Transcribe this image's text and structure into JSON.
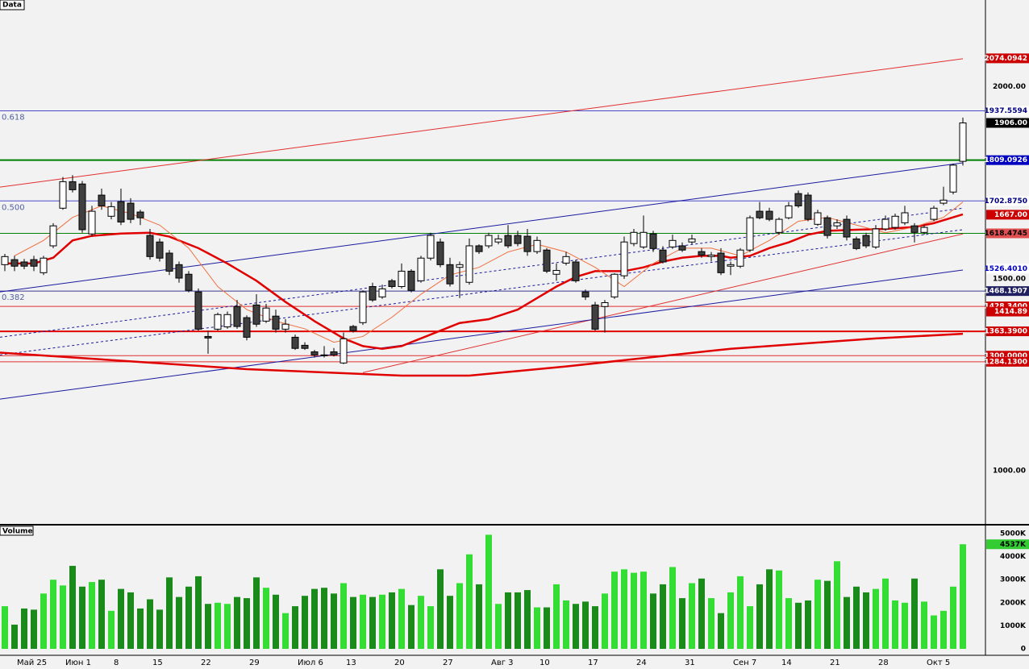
{
  "chart_data": {
    "type": "candlestick",
    "panel_title": "Data",
    "ylim": [
      862,
      2226
    ],
    "yticks": [
      {
        "value": 2000,
        "label": "2000.00"
      },
      {
        "value": 1500,
        "label": "1500.00"
      },
      {
        "value": 1000,
        "label": "1000.00"
      }
    ],
    "x_labels": [
      {
        "index": 1,
        "label": "Май 25"
      },
      {
        "index": 6,
        "label": "Июн 1"
      },
      {
        "index": 11,
        "label": "8"
      },
      {
        "index": 15,
        "label": "15"
      },
      {
        "index": 20,
        "label": "22"
      },
      {
        "index": 25,
        "label": "29"
      },
      {
        "index": 30,
        "label": "Июл 6"
      },
      {
        "index": 35,
        "label": "13"
      },
      {
        "index": 40,
        "label": "20"
      },
      {
        "index": 45,
        "label": "27"
      },
      {
        "index": 50,
        "label": "Авг 3"
      },
      {
        "index": 55,
        "label": "10"
      },
      {
        "index": 60,
        "label": "17"
      },
      {
        "index": 65,
        "label": "24"
      },
      {
        "index": 70,
        "label": "31"
      },
      {
        "index": 75,
        "label": "Сен 7"
      },
      {
        "index": 80,
        "label": "14"
      },
      {
        "index": 85,
        "label": "21"
      },
      {
        "index": 90,
        "label": "28"
      },
      {
        "index": 95,
        "label": "Окт 5"
      }
    ],
    "up_color": "#ffffff",
    "down_color": "#404040",
    "candles": [
      [
        1537,
        1565,
        1520,
        1558
      ],
      [
        1550,
        1560,
        1520,
        1533
      ],
      [
        1544,
        1552,
        1525,
        1533
      ],
      [
        1550,
        1560,
        1520,
        1533
      ],
      [
        1516,
        1560,
        1510,
        1554
      ],
      [
        1586,
        1645,
        1580,
        1638
      ],
      [
        1684,
        1765,
        1680,
        1753
      ],
      [
        1753,
        1770,
        1725,
        1732
      ],
      [
        1747,
        1755,
        1620,
        1628
      ],
      [
        1617,
        1690,
        1610,
        1676
      ],
      [
        1718,
        1735,
        1680,
        1690
      ],
      [
        1663,
        1700,
        1655,
        1688
      ],
      [
        1701,
        1735,
        1640,
        1648
      ],
      [
        1697,
        1710,
        1645,
        1655
      ],
      [
        1674,
        1680,
        1640,
        1659
      ],
      [
        1613,
        1630,
        1550,
        1558
      ],
      [
        1596,
        1605,
        1545,
        1554
      ],
      [
        1567,
        1575,
        1510,
        1520
      ],
      [
        1537,
        1545,
        1490,
        1502
      ],
      [
        1512,
        1520,
        1465,
        1470
      ],
      [
        1466,
        1475,
        1365,
        1369
      ],
      [
        1350,
        1365,
        1305,
        1346
      ],
      [
        1369,
        1412,
        1365,
        1407
      ],
      [
        1375,
        1415,
        1370,
        1407
      ],
      [
        1428,
        1445,
        1370,
        1376
      ],
      [
        1399,
        1405,
        1340,
        1348
      ],
      [
        1432,
        1460,
        1375,
        1382
      ],
      [
        1390,
        1435,
        1385,
        1424
      ],
      [
        1403,
        1420,
        1360,
        1369
      ],
      [
        1369,
        1395,
        1360,
        1382
      ],
      [
        1348,
        1355,
        1315,
        1319
      ],
      [
        1327,
        1335,
        1315,
        1319
      ],
      [
        1310,
        1315,
        1295,
        1302
      ],
      [
        1302,
        1325,
        1295,
        1300
      ],
      [
        1310,
        1320,
        1298,
        1302
      ],
      [
        1281,
        1360,
        1278,
        1344
      ],
      [
        1376,
        1380,
        1360,
        1365
      ],
      [
        1386,
        1470,
        1380,
        1466
      ],
      [
        1480,
        1490,
        1440,
        1445
      ],
      [
        1453,
        1485,
        1448,
        1474
      ],
      [
        1495,
        1500,
        1475,
        1480
      ],
      [
        1480,
        1540,
        1475,
        1520
      ],
      [
        1520,
        1525,
        1465,
        1470
      ],
      [
        1495,
        1560,
        1490,
        1554
      ],
      [
        1554,
        1620,
        1548,
        1613
      ],
      [
        1596,
        1605,
        1530,
        1537
      ],
      [
        1537,
        1555,
        1480,
        1487
      ],
      [
        1530,
        1545,
        1450,
        1537
      ],
      [
        1491,
        1605,
        1485,
        1586
      ],
      [
        1586,
        1590,
        1565,
        1571
      ],
      [
        1586,
        1620,
        1580,
        1613
      ],
      [
        1596,
        1615,
        1590,
        1604
      ],
      [
        1613,
        1640,
        1580,
        1586
      ],
      [
        1613,
        1625,
        1585,
        1592
      ],
      [
        1611,
        1630,
        1560,
        1571
      ],
      [
        1571,
        1610,
        1565,
        1600
      ],
      [
        1575,
        1580,
        1515,
        1520
      ],
      [
        1512,
        1540,
        1495,
        1522
      ],
      [
        1541,
        1570,
        1535,
        1558
      ],
      [
        1544,
        1550,
        1490,
        1495
      ],
      [
        1466,
        1472,
        1445,
        1453
      ],
      [
        1432,
        1440,
        1365,
        1369
      ],
      [
        1428,
        1445,
        1360,
        1438
      ],
      [
        1453,
        1515,
        1448,
        1512
      ],
      [
        1508,
        1610,
        1500,
        1596
      ],
      [
        1592,
        1630,
        1585,
        1621
      ],
      [
        1583,
        1665,
        1578,
        1621
      ],
      [
        1617,
        1625,
        1570,
        1579
      ],
      [
        1575,
        1585,
        1540,
        1544
      ],
      [
        1583,
        1615,
        1578,
        1600
      ],
      [
        1586,
        1595,
        1570,
        1575
      ],
      [
        1596,
        1615,
        1590,
        1604
      ],
      [
        1571,
        1580,
        1555,
        1562
      ],
      [
        1558,
        1570,
        1545,
        1562
      ],
      [
        1567,
        1580,
        1510,
        1516
      ],
      [
        1533,
        1545,
        1510,
        1537
      ],
      [
        1533,
        1580,
        1528,
        1575
      ],
      [
        1575,
        1665,
        1570,
        1659
      ],
      [
        1676,
        1700,
        1655,
        1659
      ],
      [
        1676,
        1685,
        1650,
        1655
      ],
      [
        1621,
        1660,
        1615,
        1655
      ],
      [
        1659,
        1700,
        1655,
        1690
      ],
      [
        1722,
        1730,
        1685,
        1690
      ],
      [
        1718,
        1725,
        1650,
        1655
      ],
      [
        1642,
        1680,
        1638,
        1672
      ],
      [
        1659,
        1665,
        1605,
        1613
      ],
      [
        1638,
        1655,
        1630,
        1646
      ],
      [
        1655,
        1665,
        1600,
        1609
      ],
      [
        1604,
        1610,
        1575,
        1579
      ],
      [
        1613,
        1620,
        1580,
        1586
      ],
      [
        1583,
        1640,
        1578,
        1630
      ],
      [
        1630,
        1665,
        1625,
        1655
      ],
      [
        1634,
        1670,
        1628,
        1663
      ],
      [
        1646,
        1690,
        1640,
        1672
      ],
      [
        1638,
        1645,
        1595,
        1621
      ],
      [
        1621,
        1640,
        1615,
        1634
      ],
      [
        1655,
        1690,
        1650,
        1684
      ],
      [
        1697,
        1740,
        1692,
        1705
      ],
      [
        1726,
        1800,
        1720,
        1796
      ],
      [
        1806,
        1920,
        1795,
        1906
      ]
    ],
    "levels": [
      {
        "value": 2074.0942,
        "label": "2074.0942",
        "bg": "#cc0000",
        "fg": "#ffffff"
      },
      {
        "value": 1937.5594,
        "label": "1937.5594",
        "line": "#4a4ac8",
        "width": 1,
        "bg": "#ffffff",
        "fg": "#000080",
        "fib": "0.618"
      },
      {
        "value": 1906,
        "label": "1906.00",
        "bg": "#000000",
        "fg": "#ffffff"
      },
      {
        "value": 1809.0926,
        "label": "1809.0926",
        "line": "#008000",
        "width": 2,
        "bg": "#0000c0",
        "fg": "#ffffff"
      },
      {
        "value": 1702.875,
        "label": "1702.8750",
        "line": "#4a4ac8",
        "width": 1,
        "bg": "#ffffff",
        "fg": "#000080",
        "fib": "0.500"
      },
      {
        "value": 1667,
        "label": "1667.00",
        "bg": "#cc0000",
        "fg": "#ffffff"
      },
      {
        "value": 1618.4745,
        "label": "1618.4745",
        "line": "#008000",
        "width": 1,
        "bg": "#e05050",
        "fg": "#000000"
      },
      {
        "value": 1526.401,
        "label": "1526.4010",
        "bg": "#ffffff",
        "fg": "#0000c0"
      },
      {
        "value": 1468.1907,
        "label": "1468.1907",
        "line": "#3a3a90",
        "width": 1,
        "bg": "#202060",
        "fg": "#ffffff",
        "fib": "0.382"
      },
      {
        "value": 1428.34,
        "label": "1428.3400",
        "line": "#e03030",
        "width": 1,
        "bg": "#cc0000",
        "fg": "#ffffff"
      },
      {
        "value": 1414.89,
        "label": "1414.89",
        "bg": "#cc0000",
        "fg": "#ffffff"
      },
      {
        "value": 1363.39,
        "label": "1363.3900",
        "line": "#e00000",
        "width": 2,
        "bg": "#cc0000",
        "fg": "#ffffff"
      },
      {
        "value": 1300,
        "label": "1300.0000",
        "line": "#e03030",
        "width": 1,
        "bg": "#cc0000",
        "fg": "#ffffff"
      },
      {
        "value": 1284.13,
        "label": "1284.1300",
        "line": "#e03030",
        "width": 1,
        "bg": "#cc0000",
        "fg": "#ffffff"
      }
    ],
    "trend_lines": [
      {
        "x": [
          -0.5,
          99
        ],
        "y": [
          1739,
          2073
        ],
        "color": "#e03030",
        "dash": false
      },
      {
        "x": [
          37,
          99
        ],
        "y": [
          1256,
          1617
        ],
        "color": "#e03030",
        "dash": false
      },
      {
        "x": [
          -0.5,
          99
        ],
        "y": [
          1466,
          1802
        ],
        "color": "#1a1aa0",
        "dash": false
      },
      {
        "x": [
          -0.5,
          99
        ],
        "y": [
          1187,
          1523
        ],
        "color": "#1a1aa0",
        "dash": false
      },
      {
        "x": [
          -0.5,
          99
        ],
        "y": [
          1348,
          1684
        ],
        "color": "#1a1aa0",
        "dash": true
      },
      {
        "x": [
          -0.5,
          99
        ],
        "y": [
          1302,
          1628
        ],
        "color": "#1a1aa0",
        "dash": true
      }
    ],
    "moving_averages": [
      {
        "color": "#e00000",
        "width": 2.5,
        "x": [
          -0.5,
          25,
          41,
          48,
          58,
          75,
          90,
          99
        ],
        "y": [
          1308,
          1265,
          1248,
          1248,
          1272,
          1318,
          1345,
          1357
        ]
      },
      {
        "color": "#e00000",
        "width": 2.5,
        "x": [
          0,
          3,
          5,
          7,
          9,
          12,
          15,
          17,
          20,
          23,
          26,
          29,
          32,
          35,
          37,
          39,
          41,
          44,
          47,
          50,
          53,
          55,
          57,
          59,
          61,
          64,
          66,
          68,
          70,
          72,
          74,
          75,
          77,
          79,
          81,
          83,
          85,
          88,
          91,
          94,
          96,
          99
        ],
        "y": [
          1540,
          1540,
          1555,
          1600,
          1612,
          1618,
          1620,
          1610,
          1580,
          1540,
          1495,
          1440,
          1390,
          1345,
          1325,
          1318,
          1325,
          1355,
          1385,
          1395,
          1420,
          1450,
          1480,
          1505,
          1520,
          1520,
          1530,
          1545,
          1555,
          1560,
          1560,
          1555,
          1560,
          1580,
          1595,
          1615,
          1625,
          1628,
          1630,
          1635,
          1645,
          1668
        ]
      },
      {
        "color": "#f07040",
        "width": 1,
        "x": [
          1,
          4,
          7,
          10,
          13,
          16,
          19,
          22,
          25,
          28,
          31,
          34,
          37,
          40,
          43,
          46,
          49,
          52,
          55,
          58,
          61,
          64,
          67,
          70,
          73,
          76,
          79,
          82,
          85,
          88,
          91,
          94,
          97,
          99
        ],
        "y": [
          1560,
          1600,
          1660,
          1690,
          1670,
          1640,
          1580,
          1480,
          1420,
          1390,
          1370,
          1335,
          1350,
          1400,
          1460,
          1510,
          1530,
          1570,
          1590,
          1570,
          1530,
          1480,
          1540,
          1580,
          1580,
          1560,
          1600,
          1650,
          1660,
          1640,
          1620,
          1635,
          1660,
          1700
        ]
      }
    ],
    "volume": {
      "title": "Volume",
      "ylim": [
        0,
        5350
      ],
      "yticks": [
        {
          "value": 0,
          "label": "0"
        },
        {
          "value": 1000,
          "label": "1000K"
        },
        {
          "value": 2000,
          "label": "2000K"
        },
        {
          "value": 3000,
          "label": "3000K"
        },
        {
          "value": 4000,
          "label": "4000K"
        },
        {
          "value": 5000,
          "label": "5000K"
        }
      ],
      "up_color": "#33dd33",
      "down_color": "#1a8a1a",
      "last": {
        "value": 4537,
        "label": "4537K",
        "bg": "#33cc33"
      },
      "values": [
        1850,
        1050,
        1750,
        1700,
        2400,
        3000,
        2750,
        3600,
        2700,
        2900,
        3000,
        1650,
        2600,
        2450,
        1750,
        2150,
        1700,
        3100,
        2250,
        2700,
        3150,
        1950,
        2000,
        1950,
        2250,
        2200,
        3100,
        2650,
        2350,
        1550,
        1850,
        2300,
        2600,
        2650,
        2400,
        2850,
        2250,
        2350,
        2250,
        2350,
        2450,
        2600,
        1900,
        2300,
        1850,
        3450,
        2300,
        2850,
        4100,
        2800,
        4950,
        1950,
        2450,
        2450,
        2550,
        1800,
        1800,
        2800,
        2100,
        1950,
        2050,
        1850,
        2400,
        3350,
        3450,
        3300,
        3350,
        2400,
        2800,
        3550,
        2200,
        2850,
        3050,
        2200,
        1550,
        2450,
        3150,
        1850,
        2800,
        3450,
        3400,
        2200,
        2000,
        2100,
        3000,
        2950,
        3800,
        2250,
        2700,
        2450,
        2600,
        3050,
        2100,
        2000,
        3050,
        2050,
        1450,
        1650,
        2700,
        4537
      ]
    }
  }
}
